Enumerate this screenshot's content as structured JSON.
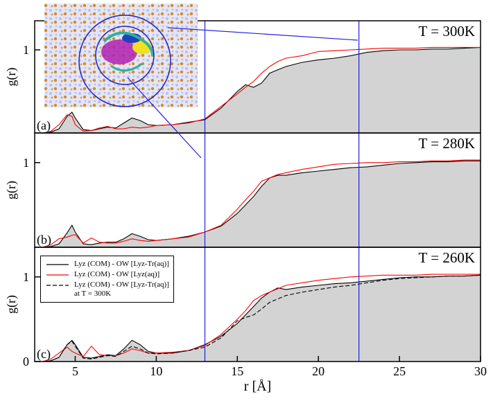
{
  "chart_data": [
    {
      "type": "line",
      "panel_label": "(a)",
      "annotation": "T = 300K",
      "ylabel": "g(r)",
      "xlim": [
        2.5,
        30
      ],
      "ylim": [
        0,
        1.35
      ],
      "yticks": [
        1
      ],
      "vlines": [
        13,
        22.5
      ],
      "x": [
        3,
        3.5,
        4,
        4.5,
        4.8,
        5,
        5.5,
        6,
        6.5,
        7,
        7.5,
        8,
        8.5,
        9,
        9.5,
        10,
        11,
        12,
        13,
        14,
        15,
        15.5,
        16,
        16.5,
        17,
        17.5,
        18,
        19,
        20,
        21,
        22,
        23,
        24,
        25,
        26,
        27,
        28,
        29,
        30
      ],
      "series": [
        {
          "color": "#000000",
          "fill": "#d3d3d3",
          "values": [
            0,
            0.01,
            0.05,
            0.2,
            0.25,
            0.18,
            0.04,
            0.03,
            0.05,
            0.07,
            0.06,
            0.12,
            0.18,
            0.15,
            0.1,
            0.09,
            0.1,
            0.13,
            0.16,
            0.3,
            0.5,
            0.58,
            0.55,
            0.6,
            0.72,
            0.76,
            0.8,
            0.85,
            0.88,
            0.9,
            0.93,
            0.97,
            0.99,
            1.0,
            1.0,
            1.01,
            1.01,
            1.02,
            1.03
          ]
        },
        {
          "color": "#ff0000",
          "values": [
            0,
            0.02,
            0.1,
            0.22,
            0.2,
            0.1,
            0.02,
            0.03,
            0.06,
            0.08,
            0.05,
            0.05,
            0.07,
            0.06,
            0.07,
            0.09,
            0.1,
            0.12,
            0.17,
            0.32,
            0.47,
            0.55,
            0.62,
            0.72,
            0.8,
            0.86,
            0.9,
            0.93,
            0.98,
            0.99,
            1.0,
            1.01,
            1.02,
            1.02,
            1.02,
            1.03,
            1.03,
            1.03,
            1.03
          ]
        }
      ]
    },
    {
      "type": "line",
      "panel_label": "(b)",
      "annotation": "T = 280K",
      "ylabel": "g(r)",
      "xlim": [
        2.5,
        30
      ],
      "ylim": [
        0,
        1.35
      ],
      "yticks": [
        1
      ],
      "vlines": [
        13,
        22.5
      ],
      "x": [
        3,
        3.5,
        4,
        4.5,
        4.8,
        5,
        5.5,
        6,
        6.5,
        7,
        7.5,
        8,
        8.5,
        9,
        9.5,
        10,
        11,
        12,
        13,
        14,
        15,
        15.5,
        16,
        16.5,
        17,
        17.5,
        18,
        19,
        20,
        21,
        22,
        23,
        24,
        25,
        26,
        27,
        28,
        29,
        30
      ],
      "series": [
        {
          "color": "#000000",
          "fill": "#d3d3d3",
          "values": [
            0,
            0.01,
            0.04,
            0.17,
            0.26,
            0.18,
            0.04,
            0.03,
            0.05,
            0.06,
            0.06,
            0.1,
            0.16,
            0.13,
            0.09,
            0.08,
            0.1,
            0.13,
            0.18,
            0.25,
            0.4,
            0.5,
            0.6,
            0.72,
            0.82,
            0.85,
            0.85,
            0.88,
            0.9,
            0.92,
            0.94,
            0.95,
            0.97,
            0.99,
            1.0,
            1.01,
            1.01,
            1.02,
            1.02
          ]
        },
        {
          "color": "#ff0000",
          "values": [
            0,
            0.03,
            0.1,
            0.12,
            0.14,
            0.15,
            0.05,
            0.11,
            0.06,
            0.05,
            0.05,
            0.07,
            0.1,
            0.08,
            0.07,
            0.08,
            0.1,
            0.12,
            0.18,
            0.26,
            0.45,
            0.56,
            0.66,
            0.78,
            0.82,
            0.86,
            0.88,
            0.92,
            0.95,
            0.98,
            0.99,
            1.0,
            1.0,
            1.01,
            1.01,
            1.02,
            1.02,
            1.03,
            1.03
          ]
        }
      ]
    },
    {
      "type": "line",
      "panel_label": "(c)",
      "annotation": "T = 260K",
      "ylabel": "g(r)",
      "xlabel": "r [Å]",
      "xlim": [
        2.5,
        30
      ],
      "ylim": [
        0,
        1.35
      ],
      "yticks": [
        0,
        1
      ],
      "xticks": [
        5,
        10,
        15,
        20,
        25,
        30
      ],
      "vlines": [
        13,
        22.5
      ],
      "legend": "upper left",
      "x": [
        3,
        3.5,
        4,
        4.5,
        4.8,
        5,
        5.5,
        6,
        6.5,
        7,
        7.5,
        8,
        8.5,
        9,
        9.5,
        10,
        11,
        12,
        13,
        14,
        15,
        15.5,
        16,
        16.5,
        17,
        17.5,
        18,
        19,
        20,
        21,
        22,
        23,
        24,
        25,
        26,
        27,
        28,
        29,
        30
      ],
      "series": [
        {
          "name": "Lyz (COM) - OW [Lyz-Tr(aq)]",
          "color": "#000000",
          "fill": "#d3d3d3",
          "values": [
            0,
            0.01,
            0.05,
            0.2,
            0.25,
            0.2,
            0.05,
            0.04,
            0.06,
            0.08,
            0.07,
            0.15,
            0.25,
            0.2,
            0.12,
            0.1,
            0.1,
            0.13,
            0.2,
            0.3,
            0.45,
            0.55,
            0.65,
            0.75,
            0.82,
            0.87,
            0.85,
            0.88,
            0.9,
            0.92,
            0.93,
            0.95,
            0.97,
            0.99,
            1.0,
            1.0,
            1.01,
            1.01,
            1.02
          ]
        },
        {
          "name": "Lyz (COM) - OW [Lyz(aq)]",
          "color": "#ff0000",
          "values": [
            0,
            0.03,
            0.1,
            0.17,
            0.12,
            0.1,
            0.06,
            0.18,
            0.08,
            0.07,
            0.07,
            0.1,
            0.15,
            0.13,
            0.1,
            0.1,
            0.11,
            0.13,
            0.19,
            0.32,
            0.5,
            0.6,
            0.72,
            0.78,
            0.82,
            0.86,
            0.9,
            0.93,
            0.96,
            0.98,
            1.0,
            1.01,
            1.02,
            1.02,
            1.02,
            1.03,
            1.03,
            1.03,
            1.03
          ]
        },
        {
          "name": "Lyz (COM) - OW [Lyz-Tr(aq)]\nat T = 300K",
          "color": "#000000",
          "dashed": true,
          "values": [
            0,
            0.01,
            0.05,
            0.2,
            0.24,
            0.18,
            0.04,
            0.03,
            0.05,
            0.07,
            0.06,
            0.12,
            0.18,
            0.15,
            0.1,
            0.09,
            0.1,
            0.13,
            0.17,
            0.28,
            0.48,
            0.52,
            0.55,
            0.62,
            0.7,
            0.74,
            0.78,
            0.82,
            0.85,
            0.88,
            0.9,
            0.93,
            0.96,
            0.98,
            0.99,
            1.0,
            1.01,
            1.01,
            1.02
          ]
        }
      ]
    }
  ]
}
